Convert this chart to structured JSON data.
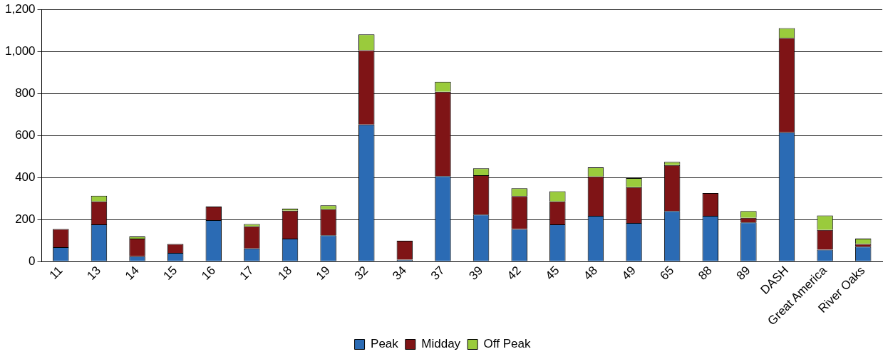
{
  "chart_data": {
    "type": "bar",
    "stacked": true,
    "categories": [
      "11",
      "13",
      "14",
      "15",
      "16",
      "17",
      "18",
      "19",
      "32",
      "34",
      "37",
      "39",
      "42",
      "45",
      "48",
      "49",
      "65",
      "88",
      "89",
      "DASH",
      "Great America",
      "River Oaks"
    ],
    "series": [
      {
        "name": "Peak",
        "color": "#2b6bb4",
        "values": [
          68,
          177,
          25,
          41,
          197,
          62,
          109,
          125,
          652,
          9,
          406,
          223,
          155,
          177,
          217,
          183,
          240,
          217,
          186,
          615,
          56,
          71
        ]
      },
      {
        "name": "Midday",
        "color": "#7f1416",
        "values": [
          87,
          109,
          84,
          42,
          64,
          105,
          133,
          124,
          354,
          90,
          402,
          188,
          156,
          109,
          188,
          171,
          219,
          109,
          22,
          449,
          94,
          12
        ]
      },
      {
        "name": "Off Peak",
        "color": "#9acb3c",
        "values": [
          null,
          27,
          10,
          0,
          0,
          11,
          9,
          18,
          75,
          0,
          48,
          33,
          38,
          48,
          43,
          43,
          15,
          null,
          32,
          47,
          69,
          26
        ]
      }
    ],
    "ylim": [
      0,
      1200
    ],
    "yticks": [
      0,
      200,
      400,
      600,
      800,
      {
        "value": 1000,
        "label": "1,000"
      },
      {
        "value": 1200,
        "label": "1,200"
      }
    ],
    "grid": "y",
    "legend": "bottom"
  }
}
